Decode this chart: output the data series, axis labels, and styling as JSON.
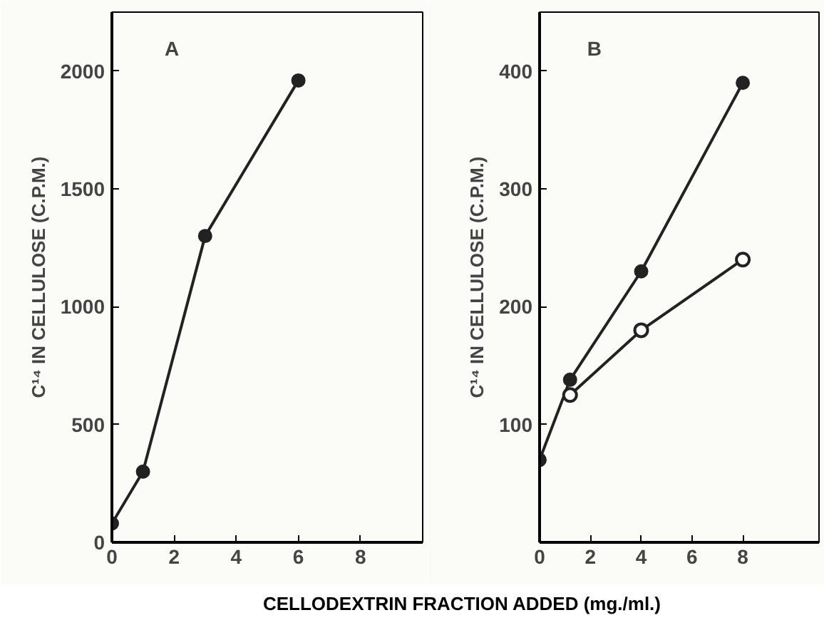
{
  "chart_data": [
    {
      "type": "line",
      "ylabel": "C¹⁴ IN CELLULOSE (C.P.M.)",
      "annotations": [
        "A"
      ],
      "xlim": [
        0,
        10
      ],
      "ylim": [
        0,
        2250
      ],
      "xticks": [
        0,
        2,
        4,
        6,
        8
      ],
      "yticks": [
        0,
        500,
        1000,
        1500,
        2000
      ],
      "grid": false,
      "line_style": "solid",
      "series": [
        {
          "x": [
            0,
            1,
            3,
            6
          ],
          "values": [
            80,
            300,
            1300,
            1960
          ],
          "color": "#222222",
          "marker": "circle"
        }
      ]
    },
    {
      "type": "line",
      "ylabel": "C¹⁴ IN CELLULOSE (C.P.M.)",
      "xlabel": "CELLODEXTRIN FRACTION ADDED (mg./ml.)",
      "annotations": [
        "B"
      ],
      "xlim": [
        0,
        11
      ],
      "ylim": [
        0,
        450
      ],
      "xticks": [
        0,
        2,
        4,
        6,
        8
      ],
      "yticks": [
        100,
        200,
        300,
        400
      ],
      "grid": false,
      "line_style": "solid",
      "series": [
        {
          "x": [
            0,
            1.2,
            4,
            8
          ],
          "values": [
            70,
            138,
            230,
            390
          ],
          "color": "#222222",
          "marker": "circle"
        },
        {
          "x": [
            1.2,
            4,
            8
          ],
          "values": [
            125,
            180,
            240
          ],
          "color": "#222222",
          "marker": "circle_open"
        }
      ]
    }
  ]
}
